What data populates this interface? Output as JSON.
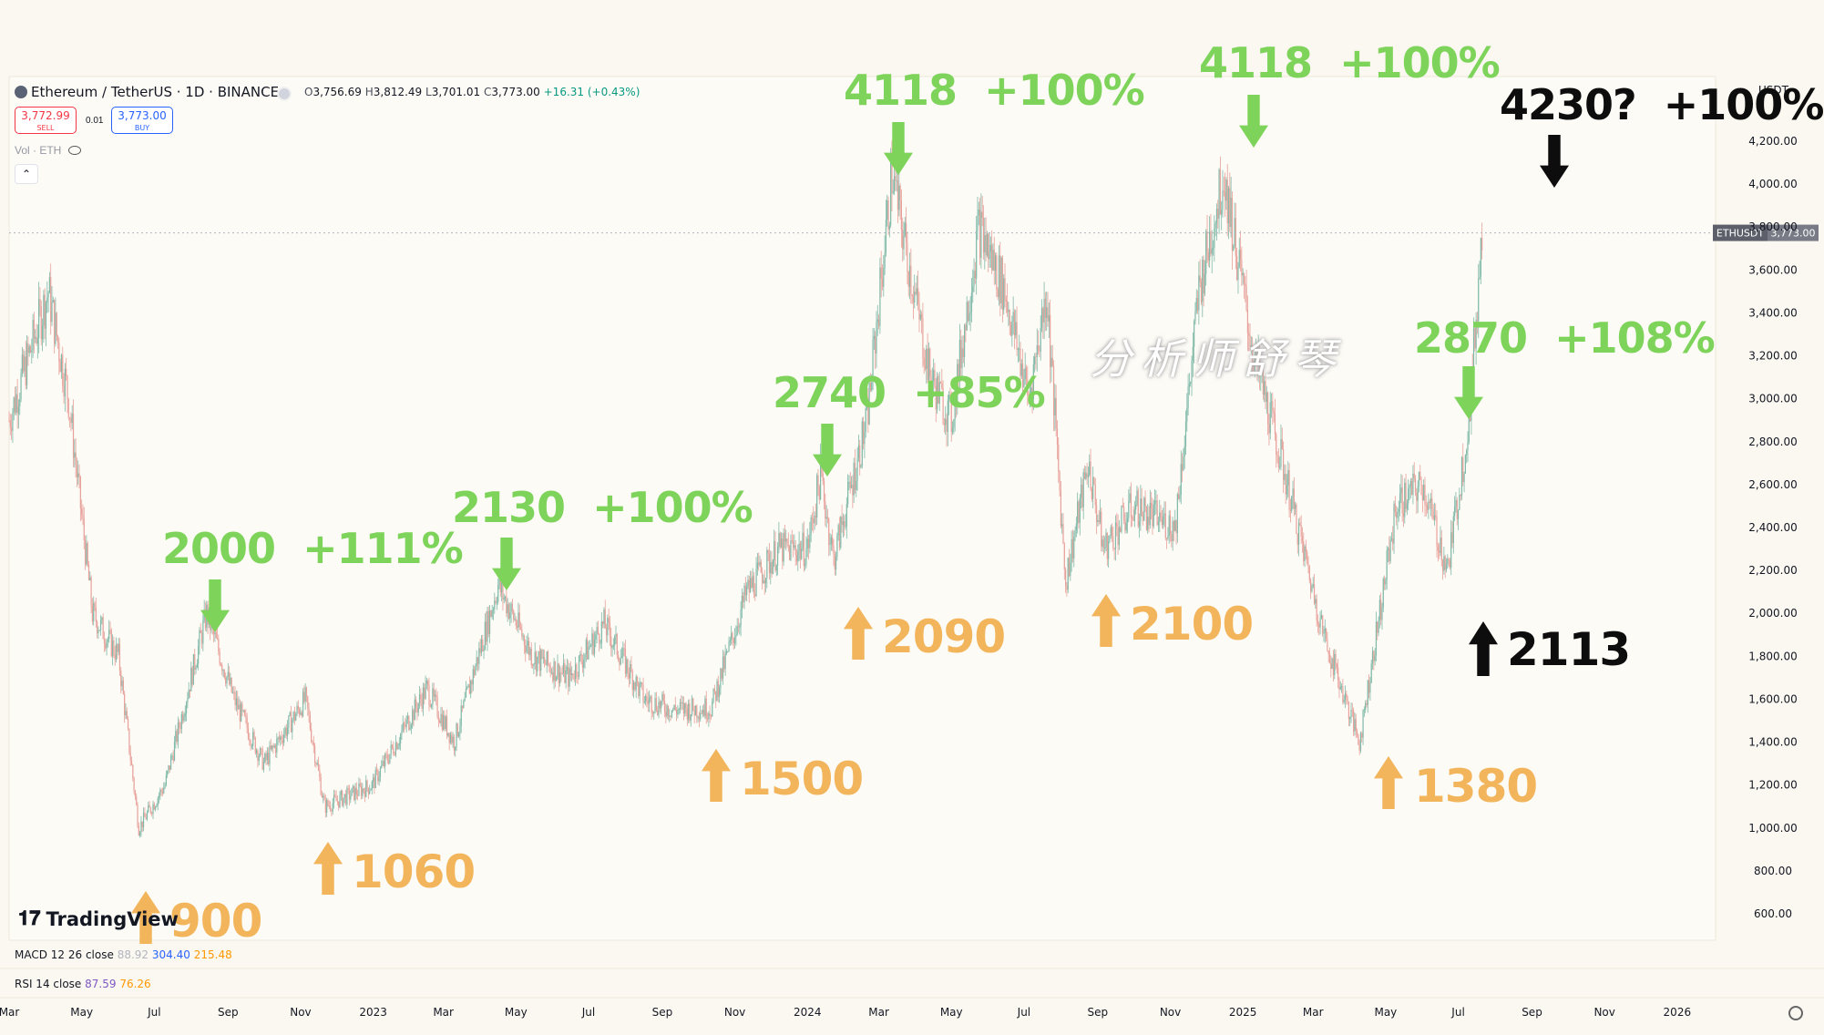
{
  "header": {
    "symbol": "Ethereum / TetherUS · 1D · BINANCE",
    "open_label": "O",
    "open": "3,756.69",
    "high_label": "H",
    "high": "3,812.49",
    "low_label": "L",
    "low": "3,701.01",
    "close_label": "C",
    "close": "3,773.00",
    "change": "+16.31 (+0.43%)",
    "sell_price": "3,772.99",
    "sell_label": "SELL",
    "buy_price": "3,773.00",
    "buy_label": "BUY",
    "spread": "0.01",
    "volume_label": "Vol · ETH",
    "currency": "USDT"
  },
  "price_tag": {
    "symbol": "ETHUSDT",
    "price": "3,773.00"
  },
  "indicators": {
    "macd_label": "MACD 12 26 close",
    "macd_v1": "88.92",
    "macd_v2": "304.40",
    "macd_v3": "215.48",
    "rsi_label": "RSI 14 close",
    "rsi_v1": "87.59",
    "rsi_v2": "76.26"
  },
  "branding": {
    "logo_text": "TradingView",
    "watermark": "分析师舒琴"
  },
  "colors": {
    "green": "#7ed35a",
    "orange": "#f2b55c",
    "black": "#0d0d0d",
    "up": "#7fb9a8",
    "down": "#e8a09a"
  },
  "annotations": [
    {
      "id": "a900",
      "kind": "support",
      "price_label": "900"
    },
    {
      "id": "a2000",
      "kind": "resistance",
      "price_label": "2000",
      "pct": "+111%"
    },
    {
      "id": "a1060",
      "kind": "support",
      "price_label": "1060"
    },
    {
      "id": "a2130",
      "kind": "resistance",
      "price_label": "2130",
      "pct": "+100%"
    },
    {
      "id": "a1500",
      "kind": "support",
      "price_label": "1500"
    },
    {
      "id": "a2740",
      "kind": "resistance",
      "price_label": "2740",
      "pct": "+85%"
    },
    {
      "id": "a2090",
      "kind": "support",
      "price_label": "2090"
    },
    {
      "id": "a4118a",
      "kind": "resistance",
      "price_label": "4118",
      "pct": "+100%"
    },
    {
      "id": "a2100",
      "kind": "support",
      "price_label": "2100"
    },
    {
      "id": "a4118b",
      "kind": "resistance",
      "price_label": "4118",
      "pct": "+100%"
    },
    {
      "id": "a1380",
      "kind": "support",
      "price_label": "1380"
    },
    {
      "id": "a2870",
      "kind": "resistance",
      "price_label": "2870",
      "pct": "+108%"
    },
    {
      "id": "a2113",
      "kind": "forecast-support",
      "price_label": "2113"
    },
    {
      "id": "a4230",
      "kind": "forecast-target",
      "price_label": "4230?",
      "pct": "+100%"
    }
  ],
  "chart_data": {
    "type": "candlestick",
    "title": "Ethereum / TetherUS · 1D · BINANCE",
    "ylim": [
      500,
      4400
    ],
    "y_ticks": [
      "600.00",
      "800.00",
      "1,000.00",
      "1,200.00",
      "1,400.00",
      "1,600.00",
      "1,800.00",
      "2,000.00",
      "2,200.00",
      "2,400.00",
      "2,600.00",
      "2,800.00",
      "3,000.00",
      "3,200.00",
      "3,400.00",
      "3,600.00",
      "3,800.00",
      "4,000.00",
      "4,200.00"
    ],
    "x_ticks": [
      "Mar",
      "May",
      "Jul",
      "Sep",
      "Nov",
      "2023",
      "Mar",
      "May",
      "Jul",
      "Sep",
      "Nov",
      "2024",
      "Mar",
      "May",
      "Jul",
      "Sep",
      "Nov",
      "2025",
      "Mar",
      "May",
      "Jul",
      "Sep",
      "Nov",
      "2026"
    ],
    "xlim": [
      "2022-03-01",
      "2026-01-31"
    ],
    "last_price": 3773.0,
    "series": [
      {
        "name": "ETHUSDT close (approx.)",
        "x": [
          "2022-03-01",
          "2022-04-03",
          "2022-04-20",
          "2022-05-10",
          "2022-06-01",
          "2022-06-18",
          "2022-07-10",
          "2022-08-14",
          "2022-09-06",
          "2022-10-01",
          "2022-11-05",
          "2022-11-21",
          "2022-12-31",
          "2023-02-15",
          "2023-03-10",
          "2023-04-16",
          "2023-05-15",
          "2023-06-15",
          "2023-07-14",
          "2023-08-17",
          "2023-09-11",
          "2023-10-12",
          "2023-11-11",
          "2023-12-08",
          "2024-01-01",
          "2024-01-12",
          "2024-01-23",
          "2024-02-20",
          "2024-03-12",
          "2024-04-13",
          "2024-05-01",
          "2024-05-24",
          "2024-06-15",
          "2024-07-05",
          "2024-07-20",
          "2024-08-05",
          "2024-08-24",
          "2024-09-06",
          "2024-10-01",
          "2024-11-05",
          "2024-11-25",
          "2024-12-16",
          "2025-01-10",
          "2025-02-03",
          "2025-03-10",
          "2025-04-09",
          "2025-05-10",
          "2025-06-01",
          "2025-06-22",
          "2025-07-10",
          "2025-07-21"
        ],
        "values": [
          2900,
          3500,
          3000,
          2000,
          1800,
          1000,
          1200,
          2000,
          1600,
          1300,
          1600,
          1100,
          1200,
          1650,
          1400,
          2130,
          1800,
          1700,
          1950,
          1600,
          1550,
          1560,
          2100,
          2300,
          2300,
          2650,
          2250,
          2900,
          4050,
          3100,
          2900,
          3800,
          3500,
          3000,
          3500,
          2150,
          2700,
          2300,
          2500,
          2400,
          3500,
          4050,
          3200,
          2700,
          1900,
          1400,
          2500,
          2600,
          2200,
          2900,
          3773
        ]
      }
    ]
  }
}
